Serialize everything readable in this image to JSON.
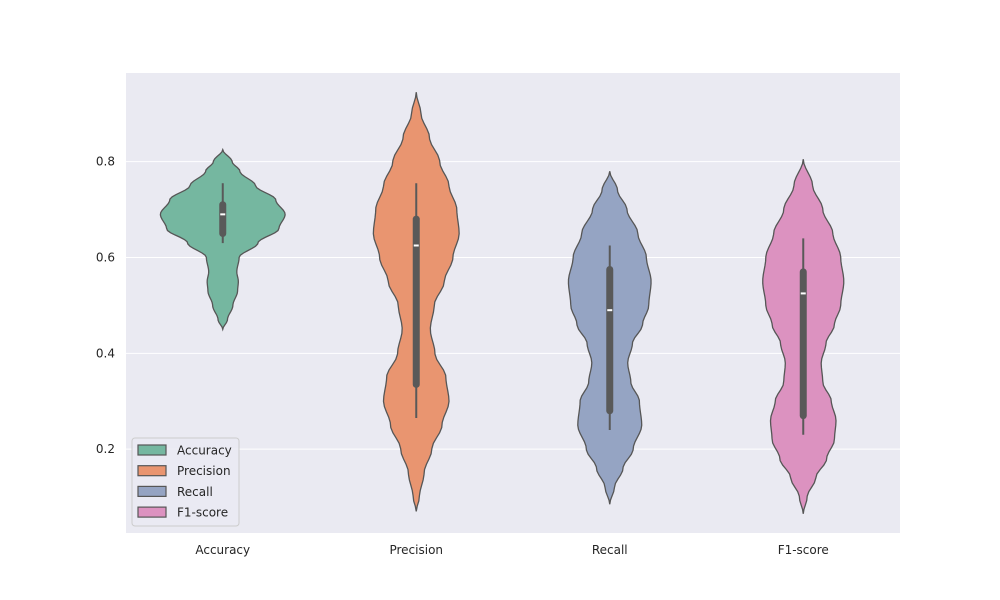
{
  "chart_data": {
    "type": "violin",
    "categories": [
      "Accuracy",
      "Precision",
      "Recall",
      "F1-score"
    ],
    "ylim": [
      0.025,
      0.985
    ],
    "yticks": [
      0.2,
      0.4,
      0.6,
      0.8
    ],
    "ytick_labels": [
      "0.2",
      "0.4",
      "0.6",
      "0.8"
    ],
    "grid": true,
    "legend": {
      "position": "lower-left",
      "entries": [
        "Accuracy",
        "Precision",
        "Recall",
        "F1-score"
      ]
    },
    "colors": [
      "#75b7a0",
      "#e99570",
      "#95a4c3",
      "#dc92c0"
    ],
    "background": "#eaeaf2",
    "series": [
      {
        "name": "Accuracy",
        "color": "#75b7a0",
        "range": [
          0.45,
          0.825
        ],
        "median": 0.69,
        "q1": 0.65,
        "q3": 0.71,
        "whisker": [
          0.63,
          0.755
        ],
        "density": [
          [
            0.45,
            0
          ],
          [
            0.47,
            0.06
          ],
          [
            0.5,
            0.13
          ],
          [
            0.53,
            0.19
          ],
          [
            0.55,
            0.2
          ],
          [
            0.57,
            0.18
          ],
          [
            0.6,
            0.21
          ],
          [
            0.63,
            0.45
          ],
          [
            0.66,
            0.72
          ],
          [
            0.69,
            0.8
          ],
          [
            0.72,
            0.68
          ],
          [
            0.75,
            0.42
          ],
          [
            0.78,
            0.22
          ],
          [
            0.8,
            0.12
          ],
          [
            0.825,
            0
          ]
        ]
      },
      {
        "name": "Precision",
        "color": "#e99570",
        "range": [
          0.07,
          0.945
        ],
        "median": 0.625,
        "q1": 0.335,
        "q3": 0.68,
        "whisker": [
          0.265,
          0.755
        ],
        "density": [
          [
            0.07,
            0
          ],
          [
            0.1,
            0.04
          ],
          [
            0.15,
            0.1
          ],
          [
            0.2,
            0.2
          ],
          [
            0.25,
            0.33
          ],
          [
            0.3,
            0.42
          ],
          [
            0.35,
            0.38
          ],
          [
            0.4,
            0.24
          ],
          [
            0.45,
            0.18
          ],
          [
            0.5,
            0.23
          ],
          [
            0.55,
            0.36
          ],
          [
            0.6,
            0.47
          ],
          [
            0.65,
            0.55
          ],
          [
            0.7,
            0.52
          ],
          [
            0.75,
            0.42
          ],
          [
            0.8,
            0.3
          ],
          [
            0.85,
            0.17
          ],
          [
            0.9,
            0.06
          ],
          [
            0.945,
            0
          ]
        ]
      },
      {
        "name": "Recall",
        "color": "#95a4c3",
        "range": [
          0.085,
          0.78
        ],
        "median": 0.49,
        "q1": 0.28,
        "q3": 0.575,
        "whisker": [
          0.24,
          0.625
        ],
        "density": [
          [
            0.085,
            0
          ],
          [
            0.12,
            0.06
          ],
          [
            0.16,
            0.17
          ],
          [
            0.2,
            0.3
          ],
          [
            0.25,
            0.41
          ],
          [
            0.3,
            0.38
          ],
          [
            0.34,
            0.27
          ],
          [
            0.38,
            0.23
          ],
          [
            0.42,
            0.29
          ],
          [
            0.46,
            0.42
          ],
          [
            0.5,
            0.5
          ],
          [
            0.55,
            0.53
          ],
          [
            0.6,
            0.47
          ],
          [
            0.65,
            0.36
          ],
          [
            0.7,
            0.22
          ],
          [
            0.74,
            0.1
          ],
          [
            0.78,
            0
          ]
        ]
      },
      {
        "name": "F1-score",
        "color": "#dc92c0",
        "range": [
          0.065,
          0.805
        ],
        "median": 0.525,
        "q1": 0.27,
        "q3": 0.57,
        "whisker": [
          0.23,
          0.64
        ],
        "density": [
          [
            0.065,
            0
          ],
          [
            0.1,
            0.05
          ],
          [
            0.14,
            0.16
          ],
          [
            0.18,
            0.3
          ],
          [
            0.22,
            0.4
          ],
          [
            0.26,
            0.42
          ],
          [
            0.3,
            0.36
          ],
          [
            0.34,
            0.25
          ],
          [
            0.38,
            0.23
          ],
          [
            0.42,
            0.29
          ],
          [
            0.46,
            0.4
          ],
          [
            0.5,
            0.48
          ],
          [
            0.55,
            0.52
          ],
          [
            0.6,
            0.48
          ],
          [
            0.65,
            0.38
          ],
          [
            0.7,
            0.25
          ],
          [
            0.75,
            0.12
          ],
          [
            0.805,
            0
          ]
        ]
      }
    ]
  }
}
